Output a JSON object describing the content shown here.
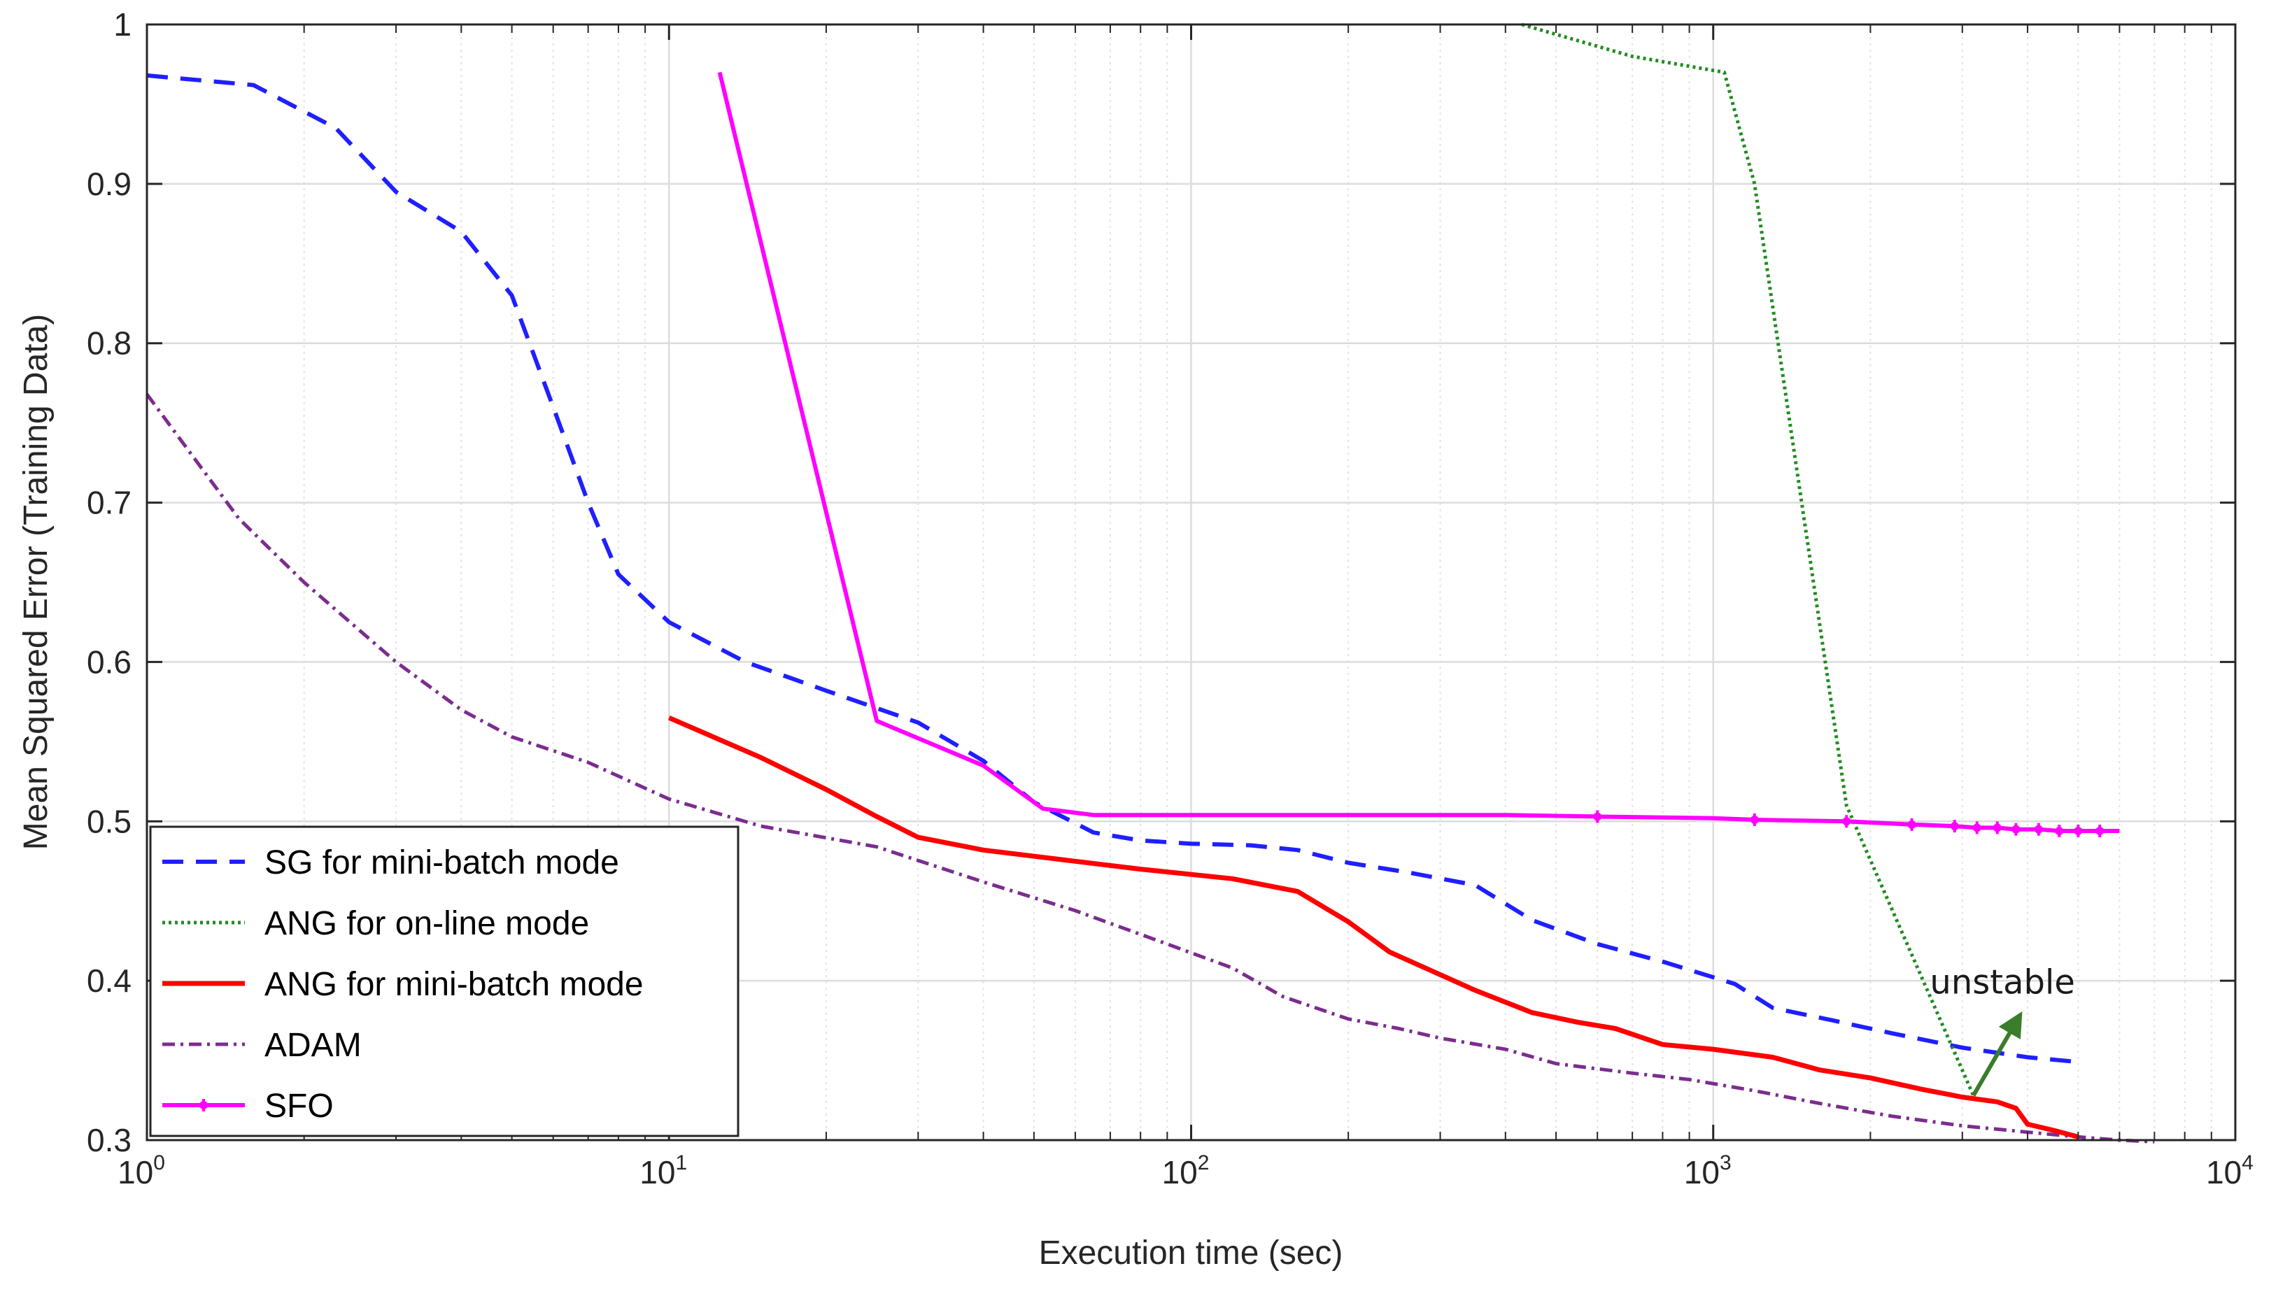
{
  "chart_data": {
    "type": "line",
    "title": "",
    "xlabel": "Execution time (sec)",
    "ylabel": "Mean Squared Error (Training Data)",
    "xscale": "log",
    "xlim": [
      1,
      10000
    ],
    "ylim": [
      0.3,
      1.0
    ],
    "grid": true,
    "legend_position": "bottom-left",
    "x_ticks": [
      {
        "base": "10",
        "exp": "0",
        "value": 1
      },
      {
        "base": "10",
        "exp": "1",
        "value": 10
      },
      {
        "base": "10",
        "exp": "2",
        "value": 100
      },
      {
        "base": "10",
        "exp": "3",
        "value": 1000
      },
      {
        "base": "10",
        "exp": "4",
        "value": 10000
      }
    ],
    "y_ticks": [
      {
        "label": "0.3",
        "value": 0.3
      },
      {
        "label": "0.4",
        "value": 0.4
      },
      {
        "label": "0.5",
        "value": 0.5
      },
      {
        "label": "0.6",
        "value": 0.6
      },
      {
        "label": "0.7",
        "value": 0.7
      },
      {
        "label": "0.8",
        "value": 0.8
      },
      {
        "label": "0.9",
        "value": 0.9
      },
      {
        "label": "1",
        "value": 1.0
      }
    ],
    "series": [
      {
        "id": "sg",
        "name": "SG for mini-batch mode",
        "color": "#1f1fff",
        "style": "dashed",
        "x": [
          1,
          1.6,
          2.3,
          3,
          4,
          5,
          6,
          7,
          8,
          10,
          14,
          20,
          30,
          40,
          50,
          65,
          80,
          100,
          130,
          160,
          200,
          260,
          350,
          450,
          600,
          800,
          1100,
          1300,
          1700,
          2200,
          3000,
          4000,
          5000
        ],
        "y": [
          0.968,
          0.962,
          0.935,
          0.895,
          0.87,
          0.83,
          0.76,
          0.7,
          0.655,
          0.625,
          0.6,
          0.582,
          0.562,
          0.538,
          0.512,
          0.493,
          0.488,
          0.486,
          0.485,
          0.482,
          0.474,
          0.468,
          0.46,
          0.438,
          0.423,
          0.412,
          0.398,
          0.383,
          0.375,
          0.367,
          0.358,
          0.352,
          0.349
        ]
      },
      {
        "id": "ang_online",
        "name": "ANG for on-line mode",
        "color": "#228b22",
        "style": "dotted",
        "x": [
          430,
          700,
          1050,
          1200,
          1800,
          3150
        ],
        "y": [
          1.0,
          0.98,
          0.97,
          0.9,
          0.51,
          0.328
        ]
      },
      {
        "id": "ang_minibatch",
        "name": "ANG for mini-batch mode",
        "color": "#ff0000",
        "style": "solid",
        "x": [
          10,
          15,
          20,
          25,
          30,
          40,
          60,
          80,
          120,
          160,
          200,
          240,
          350,
          450,
          550,
          650,
          800,
          1000,
          1300,
          1600,
          2000,
          2500,
          3000,
          3500,
          3800,
          4000,
          4500,
          5000
        ],
        "y": [
          0.565,
          0.54,
          0.52,
          0.503,
          0.49,
          0.482,
          0.475,
          0.47,
          0.464,
          0.456,
          0.437,
          0.418,
          0.394,
          0.38,
          0.374,
          0.37,
          0.36,
          0.357,
          0.352,
          0.344,
          0.339,
          0.332,
          0.327,
          0.324,
          0.32,
          0.31,
          0.306,
          0.302
        ]
      },
      {
        "id": "adam",
        "name": "ADAM",
        "color": "#7b2d8e",
        "style": "dashdot",
        "x": [
          1,
          1.5,
          2,
          3,
          4,
          5,
          7,
          10,
          15,
          25,
          40,
          60,
          90,
          120,
          150,
          200,
          250,
          300,
          400,
          500,
          700,
          900,
          1200,
          1600,
          2200,
          3000,
          4000,
          5000,
          6000,
          7000
        ],
        "y": [
          0.768,
          0.69,
          0.65,
          0.6,
          0.57,
          0.553,
          0.537,
          0.514,
          0.497,
          0.484,
          0.462,
          0.444,
          0.423,
          0.408,
          0.39,
          0.376,
          0.37,
          0.364,
          0.357,
          0.348,
          0.342,
          0.338,
          0.331,
          0.323,
          0.315,
          0.309,
          0.305,
          0.302,
          0.3,
          0.299
        ]
      },
      {
        "id": "sfo",
        "name": "SFO",
        "color": "#ff00ff",
        "style": "solid-marker",
        "x": [
          12.5,
          25,
          40,
          52,
          65,
          100,
          200,
          400,
          600,
          1000,
          1200,
          1800,
          2400,
          2900,
          3200,
          3500,
          3800,
          4200,
          4600,
          5000,
          5500,
          6000
        ],
        "y": [
          0.97,
          0.563,
          0.535,
          0.508,
          0.504,
          0.504,
          0.504,
          0.504,
          0.503,
          0.502,
          0.501,
          0.5,
          0.498,
          0.497,
          0.496,
          0.496,
          0.495,
          0.495,
          0.494,
          0.494,
          0.494,
          0.494
        ],
        "markers_x": [
          600,
          1200,
          1800,
          2400,
          2900,
          3200,
          3500,
          3800,
          4200,
          4600,
          5000,
          5500
        ]
      }
    ],
    "annotations": [
      {
        "text": "unstable",
        "arrow_from": [
          3150,
          0.328
        ],
        "arrow_to": [
          3800,
          0.374
        ],
        "text_at": [
          2600,
          0.392
        ],
        "color": "#3a7d2a"
      }
    ]
  }
}
